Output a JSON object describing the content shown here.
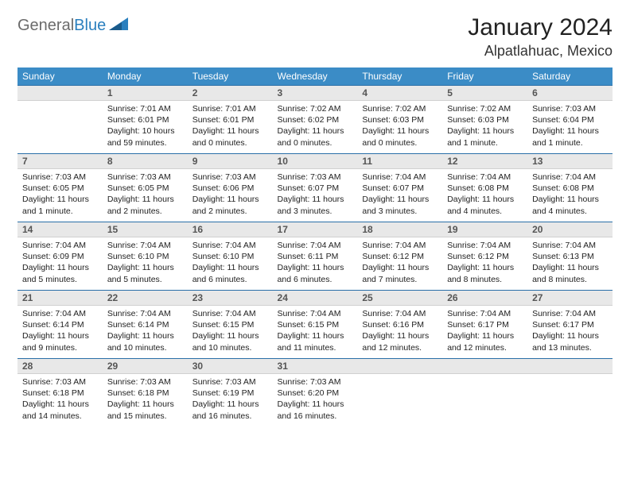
{
  "brand": {
    "part1": "General",
    "part2": "Blue"
  },
  "title": "January 2024",
  "location": "Alpatlahuac, Mexico",
  "colors": {
    "header_bg": "#3b8cc6",
    "header_text": "#ffffff",
    "daynum_bg": "#e8e8e8",
    "daynum_border_top": "#2a6fa8",
    "logo_gray": "#6b6b6b",
    "logo_blue": "#2a7fbe"
  },
  "weekdays": [
    "Sunday",
    "Monday",
    "Tuesday",
    "Wednesday",
    "Thursday",
    "Friday",
    "Saturday"
  ],
  "weeks": [
    [
      null,
      {
        "n": "1",
        "sunrise": "7:01 AM",
        "sunset": "6:01 PM",
        "daylight": "10 hours and 59 minutes."
      },
      {
        "n": "2",
        "sunrise": "7:01 AM",
        "sunset": "6:01 PM",
        "daylight": "11 hours and 0 minutes."
      },
      {
        "n": "3",
        "sunrise": "7:02 AM",
        "sunset": "6:02 PM",
        "daylight": "11 hours and 0 minutes."
      },
      {
        "n": "4",
        "sunrise": "7:02 AM",
        "sunset": "6:03 PM",
        "daylight": "11 hours and 0 minutes."
      },
      {
        "n": "5",
        "sunrise": "7:02 AM",
        "sunset": "6:03 PM",
        "daylight": "11 hours and 1 minute."
      },
      {
        "n": "6",
        "sunrise": "7:03 AM",
        "sunset": "6:04 PM",
        "daylight": "11 hours and 1 minute."
      }
    ],
    [
      {
        "n": "7",
        "sunrise": "7:03 AM",
        "sunset": "6:05 PM",
        "daylight": "11 hours and 1 minute."
      },
      {
        "n": "8",
        "sunrise": "7:03 AM",
        "sunset": "6:05 PM",
        "daylight": "11 hours and 2 minutes."
      },
      {
        "n": "9",
        "sunrise": "7:03 AM",
        "sunset": "6:06 PM",
        "daylight": "11 hours and 2 minutes."
      },
      {
        "n": "10",
        "sunrise": "7:03 AM",
        "sunset": "6:07 PM",
        "daylight": "11 hours and 3 minutes."
      },
      {
        "n": "11",
        "sunrise": "7:04 AM",
        "sunset": "6:07 PM",
        "daylight": "11 hours and 3 minutes."
      },
      {
        "n": "12",
        "sunrise": "7:04 AM",
        "sunset": "6:08 PM",
        "daylight": "11 hours and 4 minutes."
      },
      {
        "n": "13",
        "sunrise": "7:04 AM",
        "sunset": "6:08 PM",
        "daylight": "11 hours and 4 minutes."
      }
    ],
    [
      {
        "n": "14",
        "sunrise": "7:04 AM",
        "sunset": "6:09 PM",
        "daylight": "11 hours and 5 minutes."
      },
      {
        "n": "15",
        "sunrise": "7:04 AM",
        "sunset": "6:10 PM",
        "daylight": "11 hours and 5 minutes."
      },
      {
        "n": "16",
        "sunrise": "7:04 AM",
        "sunset": "6:10 PM",
        "daylight": "11 hours and 6 minutes."
      },
      {
        "n": "17",
        "sunrise": "7:04 AM",
        "sunset": "6:11 PM",
        "daylight": "11 hours and 6 minutes."
      },
      {
        "n": "18",
        "sunrise": "7:04 AM",
        "sunset": "6:12 PM",
        "daylight": "11 hours and 7 minutes."
      },
      {
        "n": "19",
        "sunrise": "7:04 AM",
        "sunset": "6:12 PM",
        "daylight": "11 hours and 8 minutes."
      },
      {
        "n": "20",
        "sunrise": "7:04 AM",
        "sunset": "6:13 PM",
        "daylight": "11 hours and 8 minutes."
      }
    ],
    [
      {
        "n": "21",
        "sunrise": "7:04 AM",
        "sunset": "6:14 PM",
        "daylight": "11 hours and 9 minutes."
      },
      {
        "n": "22",
        "sunrise": "7:04 AM",
        "sunset": "6:14 PM",
        "daylight": "11 hours and 10 minutes."
      },
      {
        "n": "23",
        "sunrise": "7:04 AM",
        "sunset": "6:15 PM",
        "daylight": "11 hours and 10 minutes."
      },
      {
        "n": "24",
        "sunrise": "7:04 AM",
        "sunset": "6:15 PM",
        "daylight": "11 hours and 11 minutes."
      },
      {
        "n": "25",
        "sunrise": "7:04 AM",
        "sunset": "6:16 PM",
        "daylight": "11 hours and 12 minutes."
      },
      {
        "n": "26",
        "sunrise": "7:04 AM",
        "sunset": "6:17 PM",
        "daylight": "11 hours and 12 minutes."
      },
      {
        "n": "27",
        "sunrise": "7:04 AM",
        "sunset": "6:17 PM",
        "daylight": "11 hours and 13 minutes."
      }
    ],
    [
      {
        "n": "28",
        "sunrise": "7:03 AM",
        "sunset": "6:18 PM",
        "daylight": "11 hours and 14 minutes."
      },
      {
        "n": "29",
        "sunrise": "7:03 AM",
        "sunset": "6:18 PM",
        "daylight": "11 hours and 15 minutes."
      },
      {
        "n": "30",
        "sunrise": "7:03 AM",
        "sunset": "6:19 PM",
        "daylight": "11 hours and 16 minutes."
      },
      {
        "n": "31",
        "sunrise": "7:03 AM",
        "sunset": "6:20 PM",
        "daylight": "11 hours and 16 minutes."
      },
      null,
      null,
      null
    ]
  ]
}
